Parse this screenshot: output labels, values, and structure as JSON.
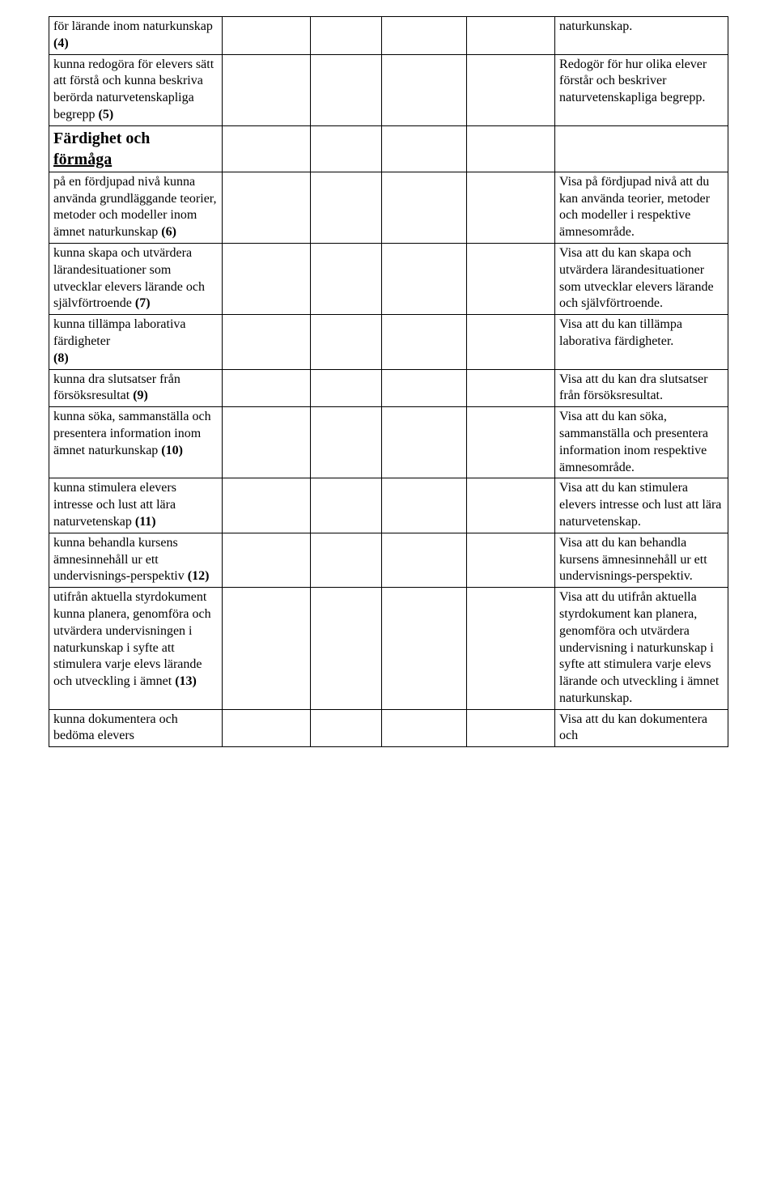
{
  "colors": {
    "background": "#ffffff",
    "text": "#000000",
    "border": "#000000"
  },
  "typography": {
    "body_font": "Times New Roman",
    "body_size_pt": 12,
    "heading_size_pt": 15
  },
  "table": {
    "columns": [
      "col1",
      "col2",
      "col3",
      "col4",
      "col5",
      "col6"
    ],
    "rows": [
      {
        "left": "för lärande inom naturkunskap ",
        "left_bold": "(4)",
        "right": "naturkunskap."
      },
      {
        "left": "kunna redogöra för elevers sätt att förstå och kunna beskriva berörda naturvetenskapliga begrepp ",
        "left_bold": "(5)",
        "right": "Redogör för hur olika elever förstår och beskriver naturvetenskapliga begrepp."
      },
      {
        "left_heading": "Färdighet och ",
        "left_heading2": "förmåga",
        "right": ""
      },
      {
        "left": "på en fördjupad nivå kunna använda grundläggande teorier, metoder och modeller inom ämnet naturkunskap ",
        "left_bold": "(6)",
        "right": "Visa på fördjupad nivå att du kan använda teorier, metoder och modeller i respektive ämnesområde."
      },
      {
        "left": "kunna skapa och utvärdera lärandesituationer som utvecklar elevers lärande och självförtroende ",
        "left_bold": "(7)",
        "right": "Visa att du kan skapa och utvärdera lärandesituationer som utvecklar elevers lärande och självförtroende."
      },
      {
        "left": "kunna tillämpa laborativa färdigheter ",
        "left_bold": "(8)",
        "right": "Visa att du kan tillämpa laborativa färdigheter."
      },
      {
        "left": "kunna dra slutsatser från försöksresultat ",
        "left_bold": "(9)",
        "right": "Visa att du kan dra slutsatser från försöksresultat."
      },
      {
        "left": "kunna söka, sammanställa och presentera information inom ämnet naturkunskap ",
        "left_bold": "(10)",
        "right": "Visa att du kan söka, sammanställa och presentera information inom respektive ämnesområde."
      },
      {
        "left": "kunna stimulera elevers intresse och lust att lära naturvetenskap ",
        "left_bold": "(11)",
        "right": "Visa att du kan stimulera elevers intresse och lust att lära naturvetenskap."
      },
      {
        "left": "kunna behandla kursens ämnesinnehåll ur ett undervisnings-perspektiv ",
        "left_bold": "(12)",
        "right": "Visa att du kan behandla kursens ämnesinnehåll ur ett undervisnings-perspektiv."
      },
      {
        "left": "utifrån aktuella styrdokument kunna planera, genomföra och utvärdera undervisningen i naturkunskap i syfte att stimulera varje elevs lärande och utveckling i ämnet ",
        "left_bold": "(13)",
        "right": "Visa att du utifrån aktuella styrdokument kan planera, genomföra och utvärdera undervisning i naturkunskap i syfte att stimulera varje elevs lärande och utveckling i ämnet naturkunskap."
      },
      {
        "left": "kunna dokumentera och bedöma elevers ",
        "left_bold": "",
        "right": "Visa att du kan dokumentera och "
      }
    ]
  }
}
